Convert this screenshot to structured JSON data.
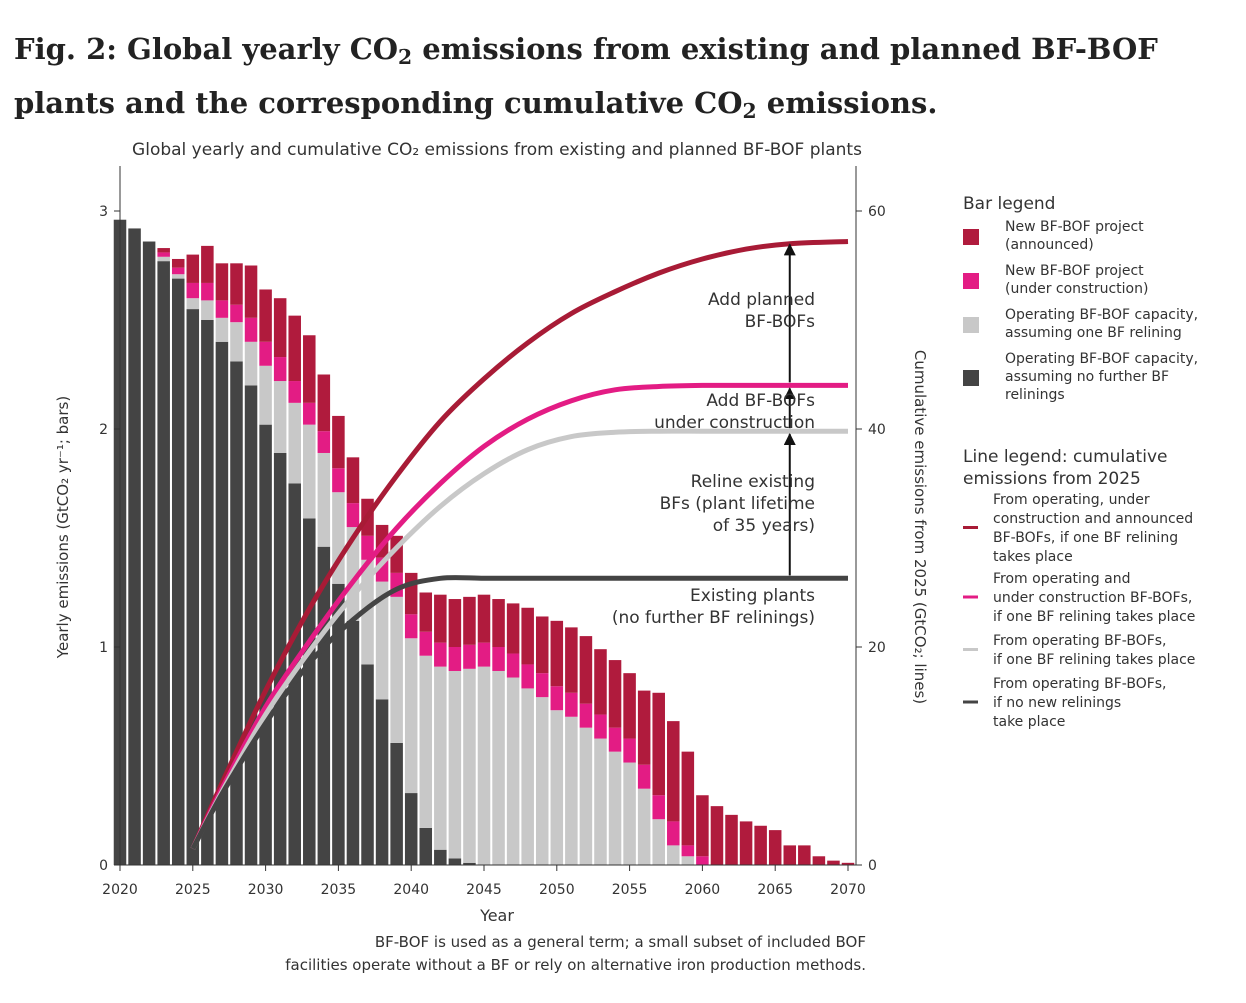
{
  "figure": {
    "title_parts": [
      "Fig. 2: Global yearly CO",
      "2",
      " emissions from existing and planned BF-BOF plants and the corresponding cumulative CO",
      "2",
      " emissions."
    ]
  },
  "chart_data": {
    "type": "bar",
    "title": "Global yearly and cumulative CO₂ emissions from existing and planned BF-BOF plants",
    "xlabel": "Year",
    "ylabel": "Yearly emissions (GtCO₂ yr⁻¹; bars)",
    "y2label": "Cumulative emissions from 2025 (GtCO₂; lines)",
    "xlim": [
      2020,
      2070
    ],
    "ylim": [
      0,
      3
    ],
    "y2lim": [
      0,
      60
    ],
    "x_ticks": [
      2020,
      2025,
      2030,
      2035,
      2040,
      2045,
      2050,
      2055,
      2060,
      2065,
      2070
    ],
    "y_ticks": [
      0,
      1,
      2,
      3
    ],
    "y2_ticks": [
      0,
      20,
      40,
      60
    ],
    "stacked": true,
    "x": [
      2020,
      2021,
      2022,
      2023,
      2024,
      2025,
      2026,
      2027,
      2028,
      2029,
      2030,
      2031,
      2032,
      2033,
      2034,
      2035,
      2036,
      2037,
      2038,
      2039,
      2040,
      2041,
      2042,
      2043,
      2044,
      2045,
      2046,
      2047,
      2048,
      2049,
      2050,
      2051,
      2052,
      2053,
      2054,
      2055,
      2056,
      2057,
      2058,
      2059,
      2060,
      2061,
      2062,
      2063,
      2064,
      2065,
      2066,
      2067,
      2068,
      2069,
      2070
    ],
    "series": [
      {
        "name": "Operating BF-BOF capacity, assuming no further BF relinings",
        "color": "#444444",
        "values": [
          2.96,
          2.92,
          2.86,
          2.77,
          2.69,
          2.55,
          2.5,
          2.4,
          2.31,
          2.2,
          2.02,
          1.89,
          1.75,
          1.59,
          1.46,
          1.29,
          1.12,
          0.92,
          0.76,
          0.56,
          0.33,
          0.17,
          0.07,
          0.03,
          0.01,
          0,
          0,
          0,
          0,
          0,
          0,
          0,
          0,
          0,
          0,
          0,
          0,
          0,
          0,
          0,
          0,
          0,
          0,
          0,
          0,
          0,
          0,
          0,
          0,
          0,
          0
        ]
      },
      {
        "name": "Operating BF-BOF capacity, assuming one BF relining",
        "color": "#c8c8c8",
        "values": [
          0,
          0,
          0,
          0.02,
          0.02,
          0.05,
          0.09,
          0.11,
          0.18,
          0.2,
          0.27,
          0.33,
          0.37,
          0.43,
          0.43,
          0.42,
          0.43,
          0.48,
          0.54,
          0.67,
          0.71,
          0.79,
          0.84,
          0.86,
          0.89,
          0.91,
          0.89,
          0.86,
          0.81,
          0.77,
          0.71,
          0.68,
          0.63,
          0.58,
          0.52,
          0.47,
          0.35,
          0.21,
          0.09,
          0.04,
          0,
          0,
          0,
          0,
          0,
          0,
          0,
          0,
          0,
          0,
          0
        ]
      },
      {
        "name": "New BF-BOF project (under construction)",
        "color": "#e31c84",
        "values": [
          0,
          0,
          0,
          0.02,
          0.03,
          0.07,
          0.08,
          0.08,
          0.08,
          0.11,
          0.11,
          0.11,
          0.1,
          0.1,
          0.1,
          0.11,
          0.11,
          0.11,
          0.11,
          0.11,
          0.11,
          0.11,
          0.11,
          0.11,
          0.11,
          0.11,
          0.11,
          0.11,
          0.11,
          0.11,
          0.11,
          0.11,
          0.11,
          0.11,
          0.11,
          0.11,
          0.11,
          0.11,
          0.11,
          0.05,
          0.04,
          0,
          0,
          0,
          0,
          0,
          0,
          0,
          0,
          0,
          0
        ]
      },
      {
        "name": "New BF-BOF project (announced)",
        "color": "#b01b3d",
        "values": [
          0,
          0,
          0,
          0.02,
          0.04,
          0.13,
          0.17,
          0.17,
          0.19,
          0.24,
          0.24,
          0.27,
          0.3,
          0.31,
          0.26,
          0.24,
          0.21,
          0.17,
          0.15,
          0.17,
          0.19,
          0.18,
          0.22,
          0.22,
          0.22,
          0.22,
          0.22,
          0.23,
          0.26,
          0.26,
          0.3,
          0.3,
          0.31,
          0.3,
          0.31,
          0.3,
          0.34,
          0.47,
          0.46,
          0.43,
          0.28,
          0.27,
          0.23,
          0.2,
          0.18,
          0.16,
          0.09,
          0.09,
          0.04,
          0.02,
          0.01
        ]
      }
    ],
    "lines": [
      {
        "name": "From operating, under construction and announced BF-BOFs, if one BF relining takes place",
        "color": "#a81b36",
        "x": [
          2025,
          2027,
          2030,
          2033,
          2036,
          2039,
          2042,
          2045,
          2048,
          2051,
          2054,
          2057,
          2060,
          2063,
          2066,
          2070
        ],
        "values": [
          1.5,
          7.5,
          16.0,
          23.5,
          30.0,
          35.7,
          40.7,
          44.6,
          47.9,
          50.6,
          52.6,
          54.3,
          55.6,
          56.5,
          57.0,
          57.2
        ]
      },
      {
        "name": "From operating and under construction BF-BOFs, if one BF relining takes place",
        "color": "#e31c84",
        "x": [
          2025,
          2027,
          2030,
          2033,
          2036,
          2039,
          2042,
          2045,
          2048,
          2051,
          2054,
          2057,
          2060,
          2063,
          2066,
          2070
        ],
        "values": [
          1.5,
          7.0,
          14.5,
          20.5,
          26.0,
          30.9,
          35.0,
          38.4,
          40.9,
          42.6,
          43.6,
          43.9,
          44.0,
          44.0,
          44.0,
          44.0
        ]
      },
      {
        "name": "From operating BF-BOFs, if one BF relining takes place",
        "color": "#c8c8c8",
        "x": [
          2025,
          2027,
          2030,
          2033,
          2036,
          2039,
          2042,
          2045,
          2048,
          2051,
          2054,
          2057,
          2060,
          2063,
          2066,
          2070
        ],
        "values": [
          1.5,
          6.7,
          13.8,
          19.6,
          24.7,
          29.1,
          32.9,
          35.9,
          38.1,
          39.3,
          39.7,
          39.8,
          39.8,
          39.8,
          39.8,
          39.8
        ]
      },
      {
        "name": "From operating BF-BOFs, if no new relinings take place",
        "color": "#444444",
        "x": [
          2025,
          2027,
          2030,
          2033,
          2036,
          2039,
          2042,
          2045,
          2048,
          2051,
          2054,
          2057,
          2060,
          2063,
          2066,
          2070
        ],
        "values": [
          1.5,
          6.5,
          13.0,
          18.5,
          22.5,
          25.3,
          26.3,
          26.3,
          26.3,
          26.3,
          26.3,
          26.3,
          26.3,
          26.3,
          26.3,
          26.3
        ]
      }
    ],
    "arrows": [
      {
        "x": 2066,
        "from": 26.3,
        "to": 39.8
      },
      {
        "x": 2066,
        "from": 39.8,
        "to": 44.0
      },
      {
        "x": 2066,
        "from": 44.0,
        "to": 57.2
      }
    ],
    "annotations": [
      {
        "lines": [
          "Add planned",
          "BF-BOFs"
        ]
      },
      {
        "lines": [
          "Add BF-BOFs",
          "under construction"
        ]
      },
      {
        "lines": [
          "Reline existing",
          "BFs (plant lifetime",
          "of 35 years)"
        ]
      },
      {
        "lines": [
          "Existing plants",
          "(no further BF relinings)"
        ]
      }
    ],
    "bar_legend_title": "Bar legend",
    "bar_legend": [
      {
        "color": "#b01b3d",
        "lines": [
          "New BF-BOF project",
          "(announced)"
        ]
      },
      {
        "color": "#e31c84",
        "lines": [
          "New BF-BOF project",
          "(under construction)"
        ]
      },
      {
        "color": "#c8c8c8",
        "lines": [
          "Operating BF-BOF capacity,",
          "assuming one BF relining"
        ]
      },
      {
        "color": "#444444",
        "lines": [
          "Operating BF-BOF capacity,",
          "assuming no further BF",
          "relinings"
        ]
      }
    ],
    "line_legend_title": [
      "Line legend: cumulative",
      "emissions from 2025"
    ],
    "line_legend": [
      {
        "color": "#a81b36",
        "lines": [
          "From operating, under",
          "construction and announced",
          "BF-BOFs, if one BF relining",
          "takes place"
        ]
      },
      {
        "color": "#e31c84",
        "lines": [
          "From operating and",
          "under construction BF-BOFs,",
          "if one BF relining takes place"
        ]
      },
      {
        "color": "#c8c8c8",
        "lines": [
          "From operating BF-BOFs,",
          "if one BF relining takes place"
        ]
      },
      {
        "color": "#444444",
        "lines": [
          "From operating BF-BOFs,",
          "if no new relinings",
          "take place"
        ]
      }
    ],
    "footnote": [
      "BF-BOF is used as a general term; a small subset of included BOF",
      "facilities operate without a BF or rely on alternative iron production methods."
    ]
  }
}
